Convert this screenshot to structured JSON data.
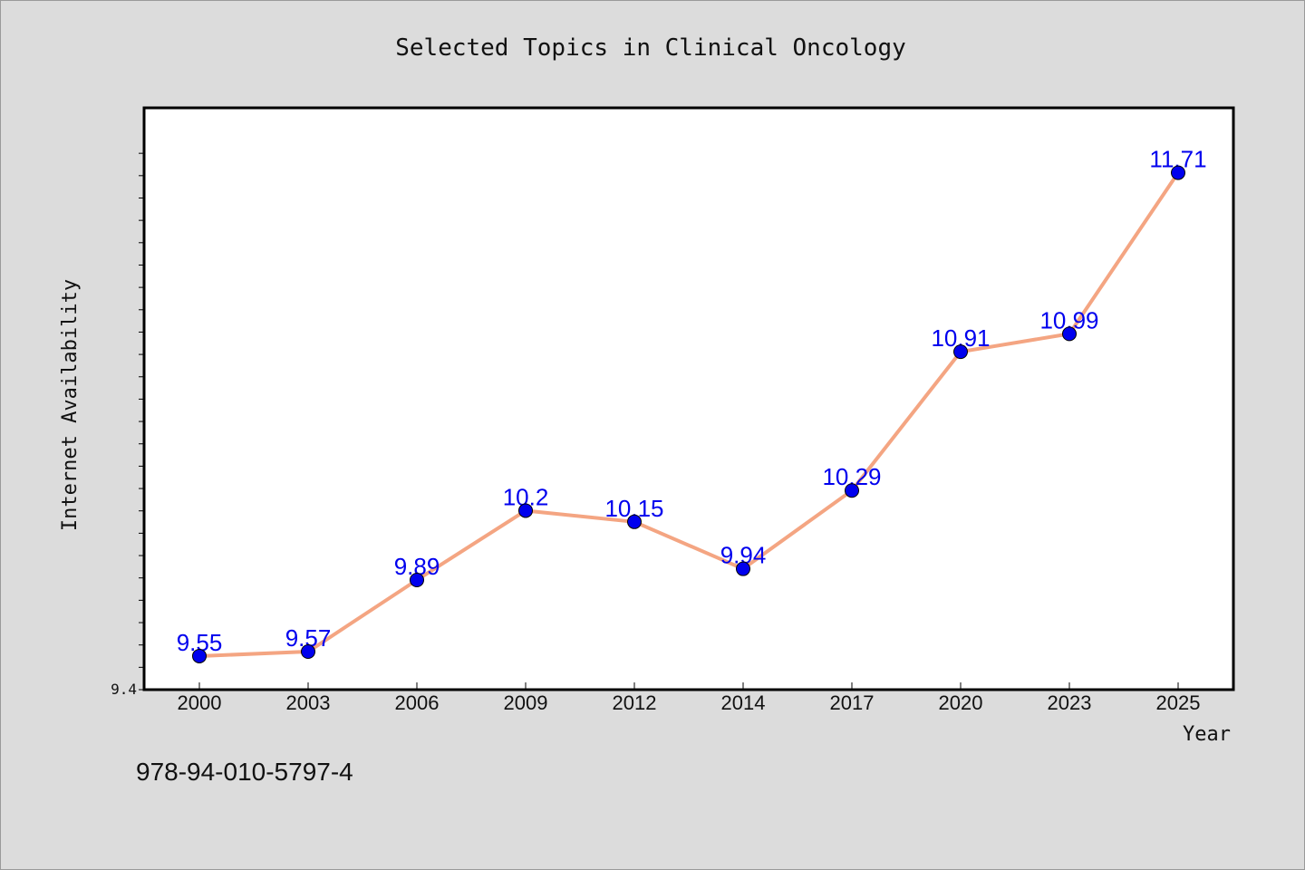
{
  "chart_data": {
    "type": "line",
    "title": "Selected Topics in Clinical Oncology",
    "xlabel": "Year",
    "ylabel": "Internet Availability",
    "categories": [
      "2000",
      "2003",
      "2006",
      "2009",
      "2012",
      "2014",
      "2017",
      "2020",
      "2023",
      "2025"
    ],
    "series": [
      {
        "values": [
          9.55,
          9.57,
          9.89,
          10.2,
          10.15,
          9.94,
          10.29,
          10.91,
          10.99,
          11.71
        ],
        "line_color": "#f4a582",
        "marker_color": "#0000ee"
      }
    ],
    "data_labels": [
      "9.55",
      "9.57",
      "9.89",
      "10.2",
      "10.15",
      "9.94",
      "10.29",
      "10.91",
      "10.99",
      "11.71"
    ],
    "y_tick_labels": [
      "9.4"
    ],
    "ylim": [
      9.4,
      12.0
    ],
    "grid": false,
    "legend": "none"
  },
  "footer": {
    "isbn": "978-94-010-5797-4"
  }
}
